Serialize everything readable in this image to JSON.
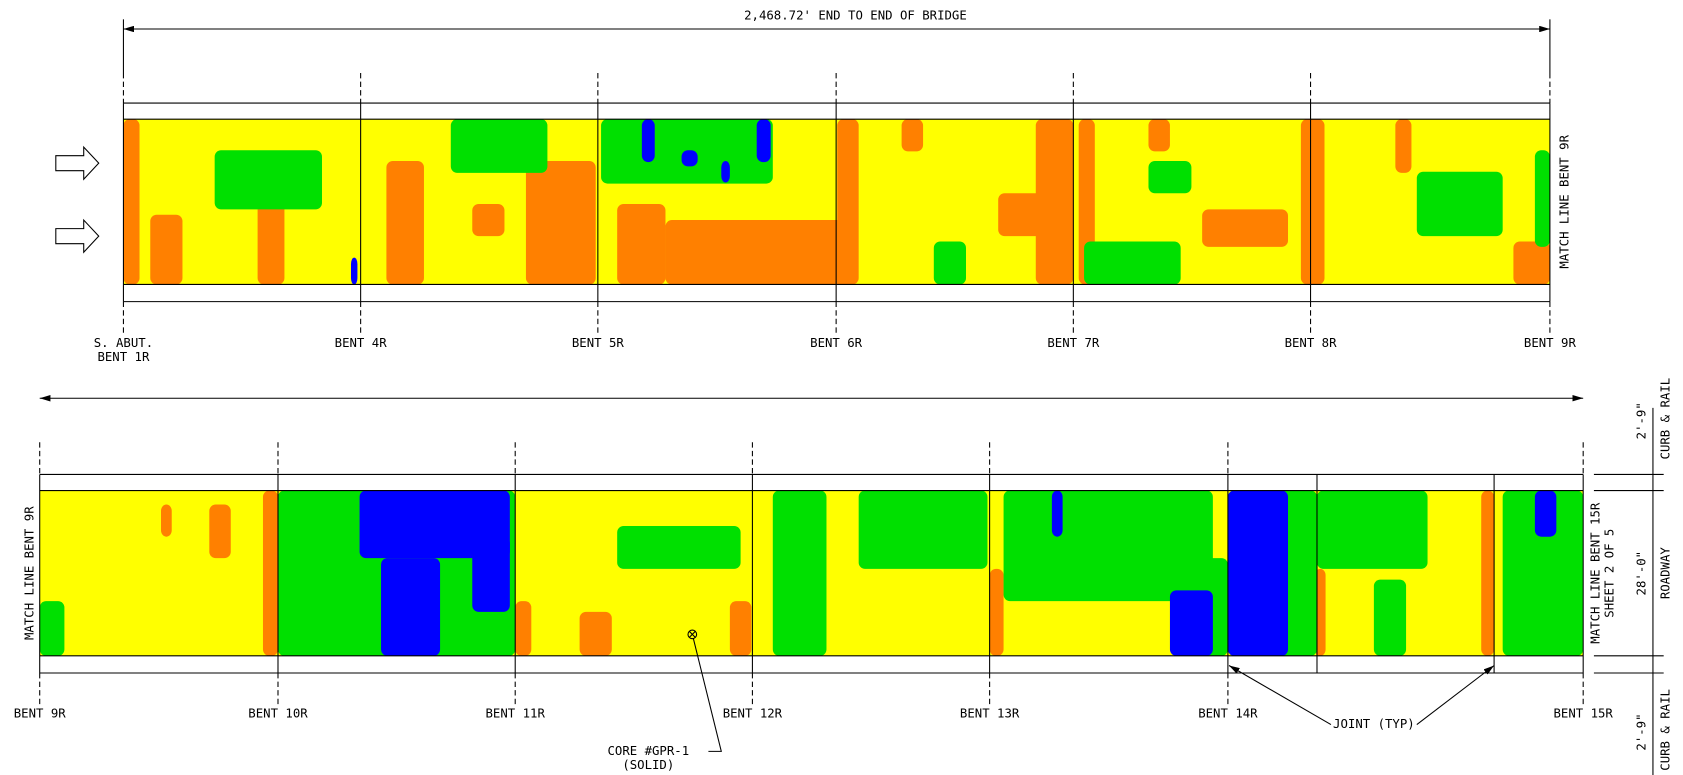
{
  "dimension": "2,468.72' END TO END OF BRIDGE",
  "top_span": {
    "bents": [
      "S. ABUT.",
      "BENT 4R",
      "BENT 5R",
      "BENT 6R",
      "BENT 7R",
      "BENT 8R",
      "BENT 9R"
    ],
    "abutment_bent": "BENT 1R",
    "match_line": "MATCH LINE BENT 9R"
  },
  "bottom_span": {
    "bents": [
      "BENT 9R",
      "BENT 10R",
      "BENT 11R",
      "BENT 12R",
      "BENT 13R",
      "BENT 14R",
      "BENT 15R"
    ],
    "match_line_start": "MATCH LINE BENT 9R",
    "match_line_end": "MATCH LINE BENT 15R",
    "sheet": "SHEET 2 OF 5"
  },
  "core": {
    "label": "CORE #GPR-1",
    "note": "(SOLID)"
  },
  "joint": "JOINT (TYP)",
  "section": {
    "curb_top": "2'-9\"",
    "curb_top_label": "CURB & RAIL",
    "roadway": "28'-0\"",
    "roadway_label": "ROADWAY",
    "curb_bottom": "2'-9\"",
    "curb_bottom_label": "CURB & RAIL"
  }
}
